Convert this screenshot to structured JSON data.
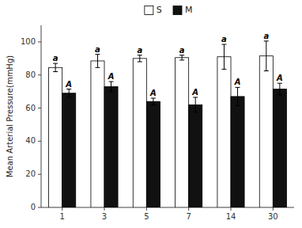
{
  "chart_data": {
    "type": "bar",
    "categories": [
      "1",
      "3",
      "5",
      "7",
      "14",
      "30"
    ],
    "series": [
      {
        "name": "S",
        "color": "#ffffff",
        "values": [
          84.5,
          88.5,
          90.0,
          90.5,
          91.0,
          91.5
        ],
        "errors": [
          2.5,
          4.0,
          2.0,
          1.5,
          7.5,
          9.0
        ],
        "annotation": "a"
      },
      {
        "name": "M",
        "color": "#111111",
        "values": [
          69.0,
          73.0,
          64.0,
          62.0,
          67.0,
          71.5
        ],
        "errors": [
          2.5,
          3.0,
          2.0,
          4.5,
          5.5,
          3.5
        ],
        "annotation": "A"
      }
    ],
    "y_label": "Mean Arterial Pressure(mmHg)",
    "ylim": [
      0,
      110
    ],
    "yticks": [
      0,
      20,
      40,
      60,
      80,
      100
    ],
    "grid": false,
    "legend": "top"
  }
}
